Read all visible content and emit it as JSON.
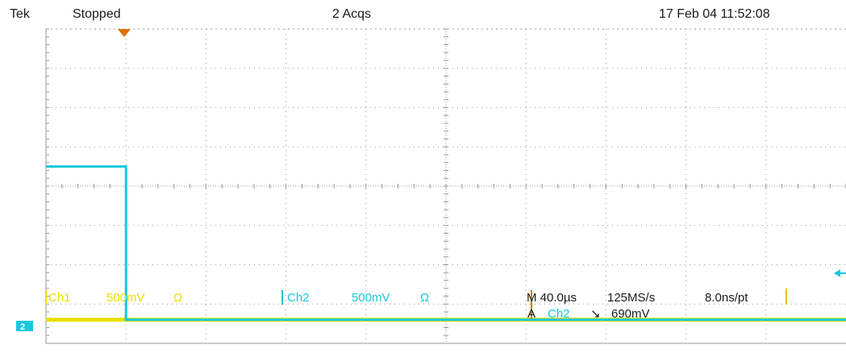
{
  "header": {
    "brand": "Tek",
    "run_state": "Stopped",
    "acquisitions": "2 Acqs",
    "timestamp": "17 Feb 04 11:52:08"
  },
  "readouts": {
    "ch1_label": "Ch1",
    "ch1_scale": "500mV",
    "ch1_coupling": "Ω",
    "ch2_label": "Ch2",
    "ch2_scale": "500mV",
    "ch2_coupling": "Ω",
    "timebase": "M 40.0µs",
    "sample_rate": "125MS/s",
    "resolution": "8.0ns/pt",
    "trigger_source_prefix": "A",
    "trigger_source": "Ch2",
    "trigger_slope": "↘",
    "trigger_level": "690mV",
    "ch2_marker": "2"
  },
  "colors": {
    "background": "#ffffff",
    "grid": "#9a9a9a",
    "ch1": "#e8e000",
    "ch2": "#19c8dc",
    "trigger_marker": "#e07000",
    "text": "#1a1a1a"
  },
  "icons": {
    "trigger_position": "down-triangle-marker",
    "trigger_level": "left-arrow-marker",
    "ch2_ground": "ground-level-marker"
  },
  "chart_data": {
    "type": "line",
    "grid": {
      "horizontal_divisions": 10,
      "vertical_divisions": 8
    },
    "series": [
      {
        "name": "Ch1",
        "x": [
          0,
          10
        ],
        "y": [
          -3.4,
          -3.4
        ]
      },
      {
        "name": "Ch2",
        "x": [
          0,
          1,
          1,
          10
        ],
        "y": [
          0.5,
          0.5,
          -3.4,
          -3.4
        ]
      }
    ]
  }
}
